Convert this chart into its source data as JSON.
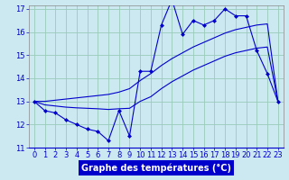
{
  "title": "Graphe des températures (°C)",
  "bg_color": "#cce8f0",
  "line_color": "#0000cc",
  "grid_color": "#99ccbb",
  "x_min": 0,
  "x_max": 23,
  "y_min": 11,
  "y_max": 17,
  "hours": [
    0,
    1,
    2,
    3,
    4,
    5,
    6,
    7,
    8,
    9,
    10,
    11,
    12,
    13,
    14,
    15,
    16,
    17,
    18,
    19,
    20,
    21,
    22,
    23
  ],
  "temp_main": [
    13.0,
    12.6,
    12.5,
    12.2,
    12.0,
    11.8,
    11.7,
    11.3,
    12.6,
    11.5,
    14.3,
    14.3,
    16.3,
    17.4,
    15.9,
    16.5,
    16.3,
    16.5,
    17.0,
    16.7,
    16.7,
    15.2,
    14.2,
    13.0
  ],
  "temp_upper": [
    13.0,
    13.0,
    13.05,
    13.1,
    13.15,
    13.2,
    13.25,
    13.3,
    13.4,
    13.55,
    13.9,
    14.2,
    14.55,
    14.85,
    15.1,
    15.35,
    15.55,
    15.75,
    15.95,
    16.1,
    16.2,
    16.3,
    16.35,
    13.0
  ],
  "temp_lower": [
    13.0,
    12.85,
    12.8,
    12.75,
    12.72,
    12.7,
    12.68,
    12.65,
    12.68,
    12.7,
    13.0,
    13.2,
    13.55,
    13.85,
    14.1,
    14.35,
    14.55,
    14.75,
    14.95,
    15.1,
    15.2,
    15.3,
    15.35,
    13.0
  ],
  "xlabel_fontsize": 7,
  "tick_fontsize": 6,
  "marker_size": 2.5,
  "lw": 0.8
}
